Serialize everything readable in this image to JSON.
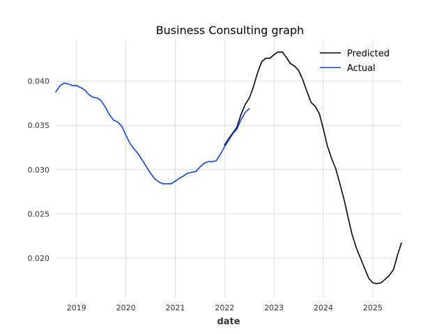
{
  "chart_data": {
    "type": "line",
    "title": "Business Consulting graph",
    "xlabel": "date",
    "ylabel": "",
    "xlim": [
      2018.58,
      2025.58
    ],
    "ylim": [
      0.0155,
      0.0447
    ],
    "x_ticks": [
      {
        "value": 2019,
        "label": "2019"
      },
      {
        "value": 2020,
        "label": "2020"
      },
      {
        "value": 2021,
        "label": "2021"
      },
      {
        "value": 2022,
        "label": "2022"
      },
      {
        "value": 2023,
        "label": "2023"
      },
      {
        "value": 2024,
        "label": "2024"
      },
      {
        "value": 2025,
        "label": "2025"
      }
    ],
    "y_ticks": [
      {
        "value": 0.02,
        "label": "0.020"
      },
      {
        "value": 0.025,
        "label": "0.025"
      },
      {
        "value": 0.03,
        "label": "0.030"
      },
      {
        "value": 0.035,
        "label": "0.035"
      },
      {
        "value": 0.04,
        "label": "0.040"
      }
    ],
    "grid": true,
    "legend": "top-right",
    "series": [
      {
        "name": "Predicted",
        "color": "#000000",
        "x": [
          2022.0,
          2022.12,
          2022.25,
          2022.33,
          2022.42,
          2022.5,
          2022.58,
          2022.67,
          2022.75,
          2022.83,
          2022.92,
          2023.0,
          2023.08,
          2023.17,
          2023.25,
          2023.33,
          2023.42,
          2023.5,
          2023.58,
          2023.67,
          2023.75,
          2023.83,
          2023.92,
          2024.0,
          2024.08,
          2024.17,
          2024.25,
          2024.33,
          2024.42,
          2024.5,
          2024.58,
          2024.67,
          2024.75,
          2024.83,
          2024.92,
          2025.0,
          2025.08,
          2025.17,
          2025.25,
          2025.33,
          2025.42,
          2025.5,
          2025.58
        ],
        "y": [
          0.0328,
          0.0338,
          0.0348,
          0.0362,
          0.0374,
          0.0381,
          0.0393,
          0.041,
          0.0422,
          0.0426,
          0.0426,
          0.043,
          0.0433,
          0.0433,
          0.0427,
          0.042,
          0.0417,
          0.0412,
          0.0402,
          0.0388,
          0.0376,
          0.0372,
          0.0363,
          0.0346,
          0.0327,
          0.0312,
          0.0301,
          0.0285,
          0.0266,
          0.0246,
          0.0227,
          0.0211,
          0.02,
          0.0189,
          0.0177,
          0.0172,
          0.0171,
          0.0172,
          0.0176,
          0.018,
          0.0187,
          0.0203,
          0.0217
        ]
      },
      {
        "name": "Actual",
        "color": "#0b41ee",
        "x": [
          2018.58,
          2018.67,
          2018.75,
          2018.83,
          2018.92,
          2019.0,
          2019.08,
          2019.17,
          2019.25,
          2019.33,
          2019.42,
          2019.5,
          2019.58,
          2019.67,
          2019.75,
          2019.83,
          2019.92,
          2020.0,
          2020.08,
          2020.17,
          2020.25,
          2020.33,
          2020.42,
          2020.5,
          2020.58,
          2020.67,
          2020.75,
          2020.83,
          2020.92,
          2021.0,
          2021.08,
          2021.17,
          2021.25,
          2021.33,
          2021.42,
          2021.5,
          2021.58,
          2021.67,
          2021.75,
          2021.83,
          2021.92,
          2022.0,
          2022.08,
          2022.17,
          2022.25,
          2022.33,
          2022.42,
          2022.5
        ],
        "y": [
          0.0388,
          0.0395,
          0.0398,
          0.0397,
          0.0395,
          0.0395,
          0.0393,
          0.039,
          0.0385,
          0.0382,
          0.0381,
          0.0378,
          0.0371,
          0.0362,
          0.0356,
          0.0354,
          0.0349,
          0.0339,
          0.033,
          0.0323,
          0.0318,
          0.0311,
          0.0303,
          0.0296,
          0.029,
          0.0286,
          0.0284,
          0.0284,
          0.0284,
          0.0287,
          0.029,
          0.0293,
          0.0296,
          0.0297,
          0.0298,
          0.0303,
          0.0307,
          0.0309,
          0.0309,
          0.031,
          0.0318,
          0.0326,
          0.0333,
          0.0341,
          0.0346,
          0.0356,
          0.0365,
          0.0369
        ]
      }
    ]
  }
}
